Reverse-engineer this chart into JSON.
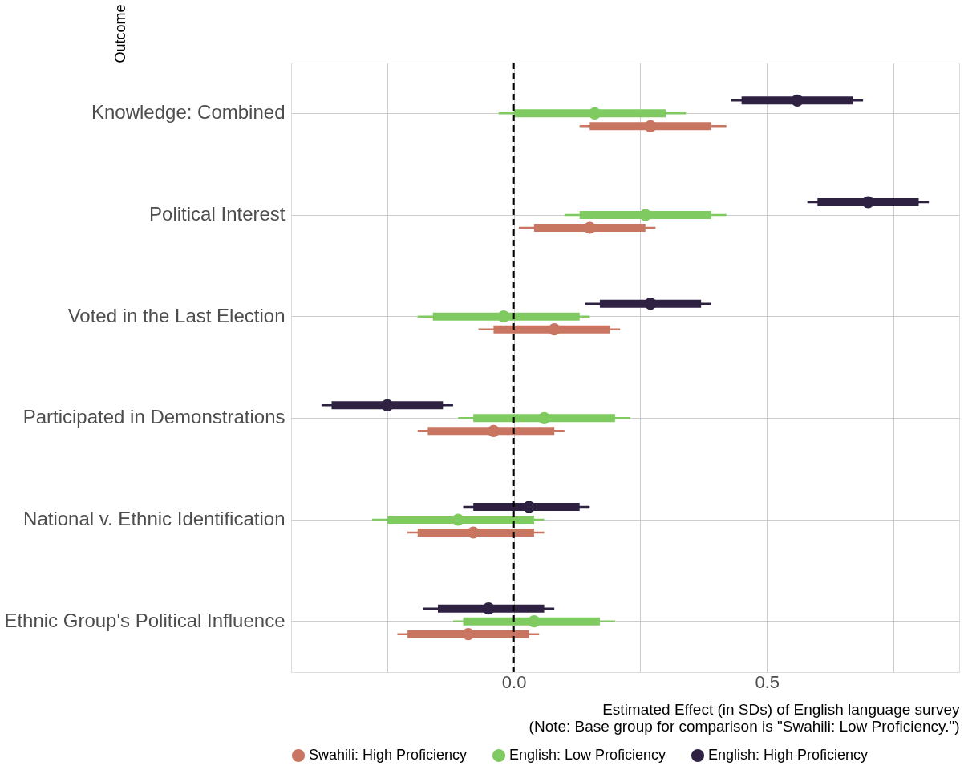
{
  "chart_data": {
    "type": "scatter",
    "orientation": "horizontal",
    "ylabel": "Outcome",
    "xlabel": "Estimated Effect (in SDs) of English language survey\n(Note: Base group for comparison is \"Swahili: Low Proficiency.\")",
    "categories": [
      "Knowledge: Combined",
      "Political Interest",
      "Voted in the Last Election",
      "Participated in Demonstrations",
      "National v. Ethnic Identification",
      "Ethnic Group's Political Influence"
    ],
    "xlim": [
      -0.44,
      0.88
    ],
    "xticks": [
      {
        "value": -0.25,
        "label": null
      },
      {
        "value": 0,
        "label": "0.0"
      },
      {
        "value": 0.25,
        "label": null
      },
      {
        "value": 0.5,
        "label": "0.5"
      },
      {
        "value": 0.75,
        "label": null
      }
    ],
    "grid": true,
    "legend": "bottom",
    "marker": "circle",
    "ref_lines": [
      {
        "axis": "x",
        "value": 0,
        "color": "#000000",
        "line_style": "dashed"
      }
    ],
    "series": [
      {
        "name": "Swahili: High Proficiency",
        "color": "#c87562",
        "values": [
          0.27,
          0.15,
          0.08,
          -0.04,
          -0.08,
          -0.09
        ],
        "errors": [
          [
            0.13,
            0.42
          ],
          [
            0.01,
            0.28
          ],
          [
            -0.07,
            0.21
          ],
          [
            -0.19,
            0.1
          ],
          [
            -0.21,
            0.06
          ],
          [
            -0.23,
            0.05
          ]
        ]
      },
      {
        "name": "English: Low Proficiency",
        "color": "#7fcb62",
        "values": [
          0.16,
          0.26,
          -0.02,
          0.06,
          -0.11,
          0.04
        ],
        "errors": [
          [
            -0.03,
            0.34
          ],
          [
            0.1,
            0.42
          ],
          [
            -0.19,
            0.15
          ],
          [
            -0.11,
            0.23
          ],
          [
            -0.28,
            0.06
          ],
          [
            -0.12,
            0.2
          ]
        ]
      },
      {
        "name": "English: High Proficiency",
        "color": "#2e2142",
        "values": [
          0.56,
          0.7,
          0.27,
          -0.25,
          0.03,
          -0.05
        ],
        "errors": [
          [
            0.43,
            0.69
          ],
          [
            0.58,
            0.82
          ],
          [
            0.14,
            0.39
          ],
          [
            -0.38,
            -0.12
          ],
          [
            -0.1,
            0.15
          ],
          [
            -0.18,
            0.08
          ]
        ]
      },
      {
        "type": "bar",
        "color": "#c87562",
        "base": [
          0.15,
          0.04,
          -0.04,
          -0.17,
          -0.19,
          -0.21
        ],
        "values": [
          0.24,
          0.22,
          0.23,
          0.25,
          0.23,
          0.24
        ]
      },
      {
        "type": "bar",
        "color": "#7fcb62",
        "base": [
          0.0,
          0.13,
          -0.16,
          -0.08,
          -0.25,
          -0.1
        ],
        "values": [
          0.3,
          0.26,
          0.29,
          0.28,
          0.29,
          0.27
        ]
      },
      {
        "type": "bar",
        "color": "#2e2142",
        "base": [
          0.45,
          0.6,
          0.17,
          -0.36,
          -0.08,
          -0.15
        ],
        "values": [
          0.22,
          0.2,
          0.2,
          0.22,
          0.21,
          0.21
        ]
      }
    ]
  }
}
